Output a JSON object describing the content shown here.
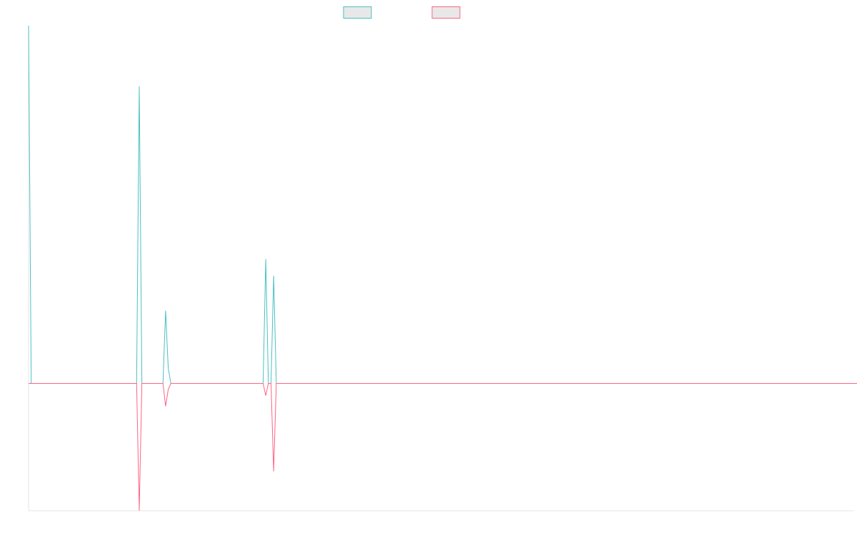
{
  "chart_data": {
    "type": "line",
    "title": "",
    "xlabel": "",
    "ylabel": "",
    "legend": "top",
    "grid": false,
    "x_start": 0,
    "x_step": 1,
    "ylim": [
      -420,
      1180
    ],
    "series": [
      {
        "color": "#4bc0c0",
        "values": [
          1180,
          0,
          0,
          0,
          0,
          0,
          0,
          0,
          0,
          0,
          0,
          0,
          0,
          0,
          0,
          0,
          0,
          0,
          0,
          0,
          0,
          0,
          0,
          0,
          0,
          0,
          0,
          0,
          0,
          0,
          0,
          0,
          0,
          0,
          0,
          0,
          0,
          0,
          0,
          0,
          0,
          0,
          980,
          0,
          0,
          0,
          0,
          0,
          0,
          0,
          0,
          0,
          240,
          50,
          0,
          0,
          0,
          0,
          0,
          0,
          0,
          0,
          0,
          0,
          0,
          0,
          0,
          0,
          0,
          0,
          0,
          0,
          0,
          0,
          0,
          0,
          0,
          0,
          0,
          0,
          0,
          0,
          0,
          0,
          0,
          0,
          0,
          0,
          0,
          0,
          410,
          0,
          0,
          355,
          0,
          0,
          0,
          0,
          0,
          0,
          0,
          0,
          0,
          0,
          0,
          0,
          0,
          0,
          0,
          0,
          0,
          0,
          0,
          0,
          0,
          0,
          0,
          0,
          0,
          0,
          0,
          0,
          0,
          0,
          0,
          0,
          0,
          0,
          0,
          0,
          0,
          0,
          0,
          0,
          0,
          0,
          0,
          0,
          0,
          0,
          0,
          0,
          0,
          0,
          0,
          0,
          0,
          0,
          0,
          0,
          0,
          0,
          0,
          0,
          0,
          0,
          0,
          0,
          0,
          0,
          0,
          0,
          0,
          0,
          0,
          0,
          0,
          0,
          0,
          0,
          0,
          0,
          0,
          0,
          0,
          0,
          0,
          0,
          0,
          0,
          0,
          0,
          0,
          0,
          0,
          0,
          0,
          0,
          0,
          0,
          0,
          0,
          0,
          0,
          0,
          0,
          0,
          0,
          0,
          0,
          0,
          0,
          0,
          0,
          0,
          0,
          0,
          0,
          0,
          0,
          0,
          0,
          0,
          0,
          0,
          0,
          0,
          0,
          0,
          0,
          0,
          0,
          0,
          0,
          0,
          0,
          0,
          0,
          0,
          0,
          0,
          0,
          0,
          0,
          0,
          0,
          0,
          0,
          0,
          0,
          0,
          0,
          0,
          0,
          0,
          0,
          0,
          0,
          0,
          0,
          0,
          0,
          0,
          0,
          0,
          0,
          0,
          0,
          0,
          0,
          0,
          0,
          0,
          0,
          0,
          0,
          0,
          0,
          0,
          0,
          0,
          0,
          0,
          0,
          0,
          0,
          0,
          0,
          0,
          0,
          0,
          0,
          0,
          0,
          0,
          0,
          0,
          0,
          0,
          0,
          0,
          0,
          0,
          0,
          0,
          0,
          0,
          0,
          0,
          0,
          0,
          0,
          0,
          0,
          0,
          0,
          0,
          0,
          0,
          0,
          0,
          0,
          0,
          0
        ]
      },
      {
        "color": "#ff6384",
        "values": [
          0,
          0,
          0,
          0,
          0,
          0,
          0,
          0,
          0,
          0,
          0,
          0,
          0,
          0,
          0,
          0,
          0,
          0,
          0,
          0,
          0,
          0,
          0,
          0,
          0,
          0,
          0,
          0,
          0,
          0,
          0,
          0,
          0,
          0,
          0,
          0,
          0,
          0,
          0,
          0,
          0,
          0,
          -420,
          0,
          0,
          0,
          0,
          0,
          0,
          0,
          0,
          0,
          -75,
          -20,
          0,
          0,
          0,
          0,
          0,
          0,
          0,
          0,
          0,
          0,
          0,
          0,
          0,
          0,
          0,
          0,
          0,
          0,
          0,
          0,
          0,
          0,
          0,
          0,
          0,
          0,
          0,
          0,
          0,
          0,
          0,
          0,
          0,
          0,
          0,
          0,
          -40,
          0,
          0,
          -290,
          0,
          0,
          0,
          0,
          0,
          0,
          0,
          0,
          0,
          0,
          0,
          0,
          0,
          0,
          0,
          0,
          0,
          0,
          0,
          0,
          0,
          0,
          0,
          0,
          0,
          0,
          0,
          0,
          0,
          0,
          0,
          0,
          0,
          0,
          0,
          0,
          0,
          0,
          0,
          0,
          0,
          0,
          0,
          0,
          0,
          0,
          0,
          0,
          0,
          0,
          0,
          0,
          0,
          0,
          0,
          0,
          0,
          0,
          0,
          0,
          0,
          0,
          0,
          0,
          0,
          0,
          0,
          0,
          0,
          0,
          0,
          0,
          0,
          0,
          0,
          0,
          0,
          0,
          0,
          0,
          0,
          0,
          0,
          0,
          0,
          0,
          0,
          0,
          0,
          0,
          0,
          0,
          0,
          0,
          0,
          0,
          0,
          0,
          0,
          0,
          0,
          0,
          0,
          0,
          0,
          0,
          0,
          0,
          0,
          0,
          0,
          0,
          0,
          0,
          0,
          0,
          0,
          0,
          0,
          0,
          0,
          0,
          0,
          0,
          0,
          0,
          0,
          0,
          0,
          0,
          0,
          0,
          0,
          0,
          0,
          0,
          0,
          0,
          0,
          0,
          0,
          0,
          0,
          0,
          0,
          0,
          0,
          0,
          0,
          0,
          0,
          0,
          0,
          0,
          0,
          0,
          0,
          0,
          0,
          0,
          0,
          0,
          0,
          0,
          0,
          0,
          0,
          0,
          0,
          0,
          0,
          0,
          0,
          0,
          0,
          0,
          0,
          0,
          0,
          0,
          0,
          0,
          0,
          0,
          0,
          0,
          0,
          0,
          0,
          0,
          0,
          0,
          0,
          0,
          0,
          0,
          0,
          0,
          0,
          0,
          0,
          0,
          0,
          0,
          0,
          0,
          0,
          0,
          0,
          0,
          0,
          0,
          0,
          0,
          0,
          0,
          0,
          0,
          0,
          0,
          0,
          0
        ]
      }
    ]
  }
}
